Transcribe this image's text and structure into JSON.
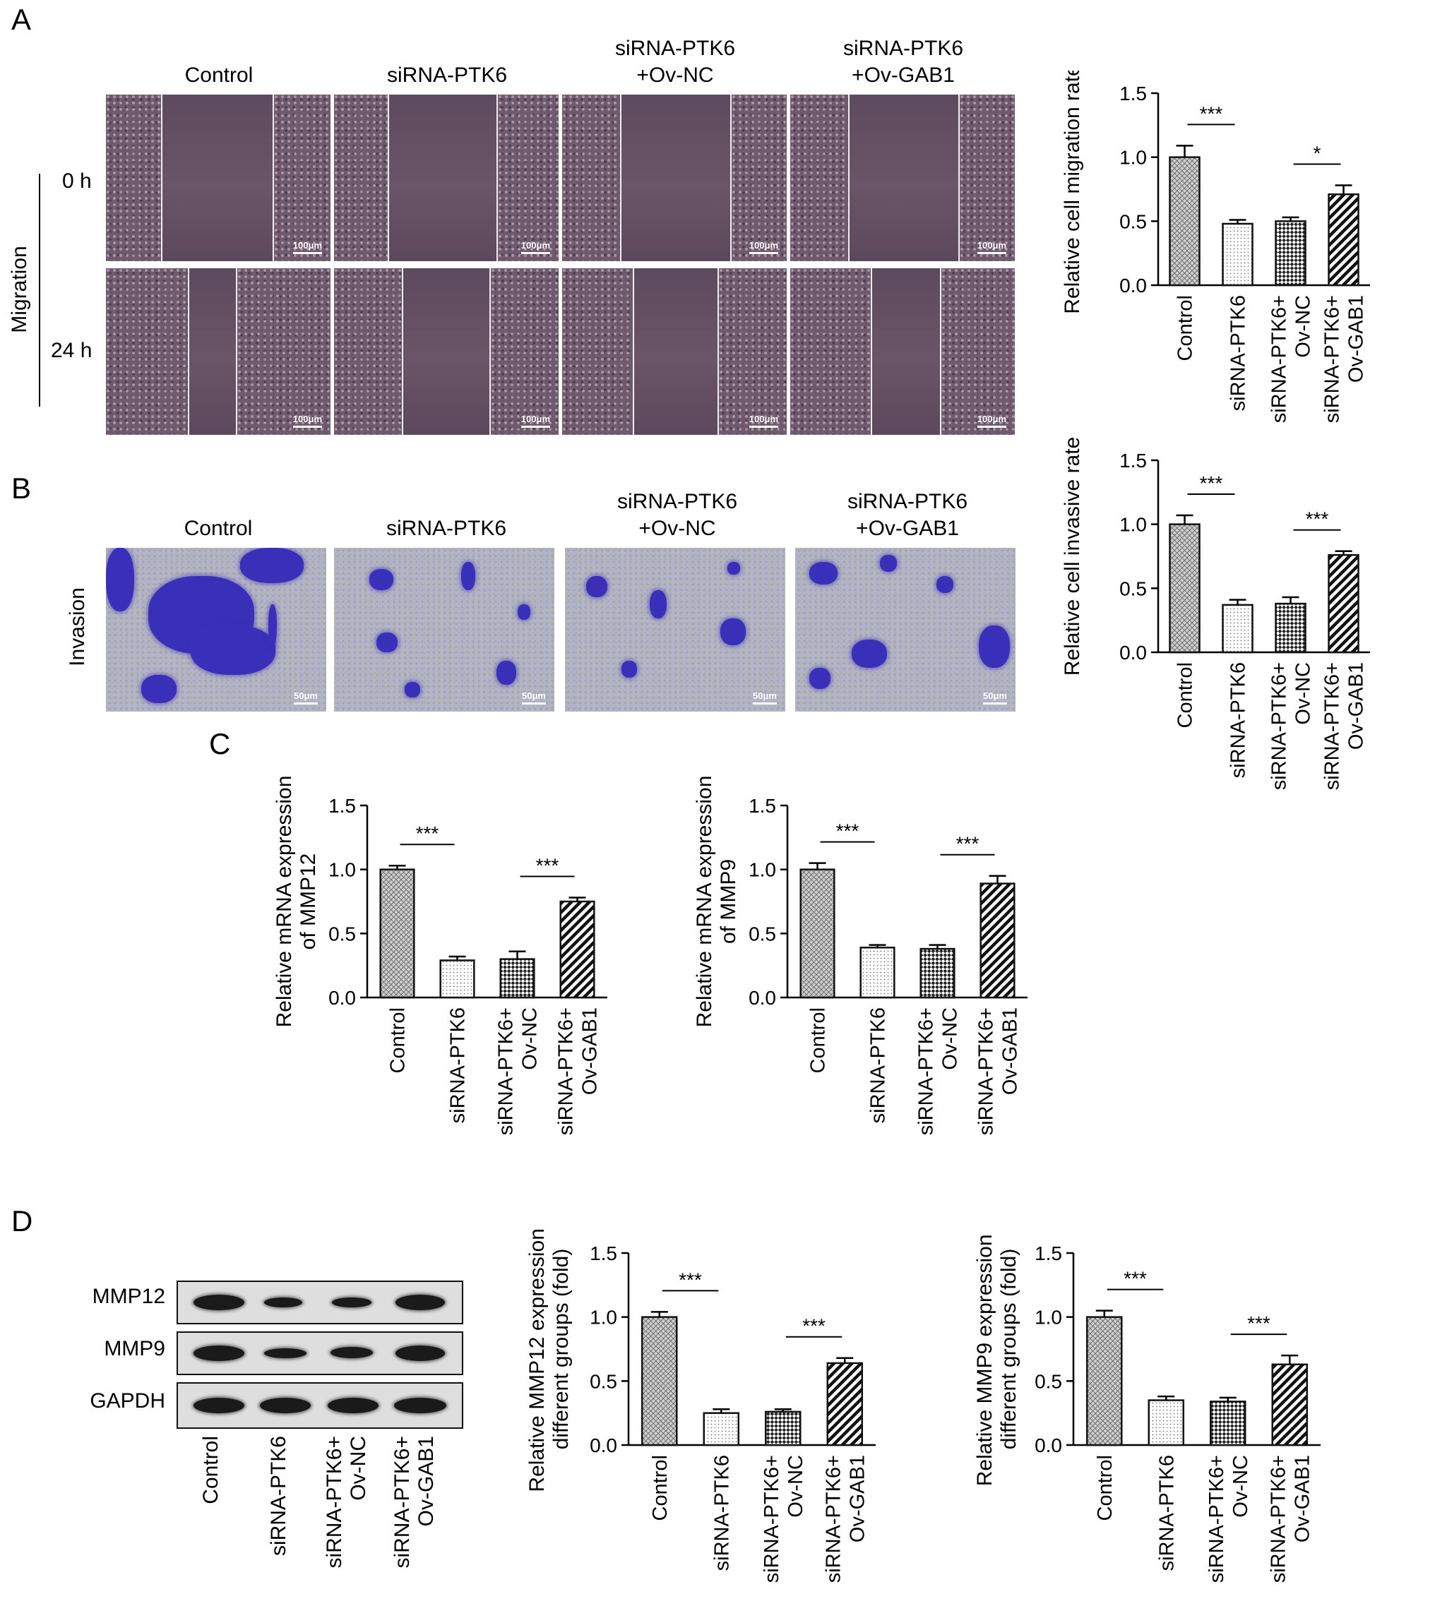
{
  "panels": {
    "a": "A",
    "b": "B",
    "c": "C",
    "d": "D"
  },
  "group_headers": [
    {
      "line1": "Control",
      "line2": ""
    },
    {
      "line1": "siRNA-PTK6",
      "line2": ""
    },
    {
      "line1": "siRNA-PTK6",
      "line2": "+Ov-NC"
    },
    {
      "line1": "siRNA-PTK6",
      "line2": "+Ov-GAB1"
    }
  ],
  "migration": {
    "label": "Migration",
    "row_0h": "0 h",
    "row_24h": "24 h",
    "scale_bar": "100μm"
  },
  "invasion": {
    "label": "Invasion",
    "scale_bar": "50μm"
  },
  "blot": {
    "rows": [
      "MMP12",
      "MMP9",
      "GAPDH"
    ],
    "lanes": [
      "Control",
      "siRNA-PTK6",
      "siRNA-PTK6+\nOv-NC",
      "siRNA-PTK6+\nOv-GAB1"
    ]
  },
  "colors": {
    "axis": "#000000",
    "bar_stroke": "#111111",
    "pattern": "#444444"
  },
  "chart_data": [
    {
      "id": "migration-rate",
      "type": "bar",
      "categories": [
        "Control",
        "siRNA-PTK6",
        "siRNA-PTK6+\nOv-NC",
        "siRNA-PTK6+\nOv-GAB1"
      ],
      "values": [
        1.0,
        0.48,
        0.5,
        0.71
      ],
      "errors": [
        0.09,
        0.03,
        0.03,
        0.07
      ],
      "ylabel": "Relative cell migration rate",
      "ylim": [
        0,
        1.5
      ],
      "yticks": [
        "0.0",
        "0.5",
        "1.0",
        "1.5"
      ],
      "significance": [
        {
          "from": 0,
          "to": 1,
          "label": "***"
        },
        {
          "from": 2,
          "to": 3,
          "label": "*"
        }
      ]
    },
    {
      "id": "invasive-rate",
      "type": "bar",
      "categories": [
        "Control",
        "siRNA-PTK6",
        "siRNA-PTK6+\nOv-NC",
        "siRNA-PTK6+\nOv-GAB1"
      ],
      "values": [
        1.0,
        0.37,
        0.38,
        0.76
      ],
      "errors": [
        0.07,
        0.04,
        0.05,
        0.03
      ],
      "ylabel": "Relative cell invasive rate",
      "ylim": [
        0,
        1.5
      ],
      "yticks": [
        "0.0",
        "0.5",
        "1.0",
        "1.5"
      ],
      "significance": [
        {
          "from": 0,
          "to": 1,
          "label": "***"
        },
        {
          "from": 2,
          "to": 3,
          "label": "***"
        }
      ]
    },
    {
      "id": "mrna-mmp12",
      "type": "bar",
      "categories": [
        "Control",
        "siRNA-PTK6",
        "siRNA-PTK6+\nOv-NC",
        "siRNA-PTK6+\nOv-GAB1"
      ],
      "values": [
        1.0,
        0.29,
        0.3,
        0.75
      ],
      "errors": [
        0.03,
        0.03,
        0.06,
        0.03
      ],
      "ylabel": "Relative mRNA expression\nof MMP12",
      "ylim": [
        0,
        1.5
      ],
      "yticks": [
        "0.0",
        "0.5",
        "1.0",
        "1.5"
      ],
      "significance": [
        {
          "from": 0,
          "to": 1,
          "label": "***"
        },
        {
          "from": 2,
          "to": 3,
          "label": "***"
        }
      ]
    },
    {
      "id": "mrna-mmp9",
      "type": "bar",
      "categories": [
        "Control",
        "siRNA-PTK6",
        "siRNA-PTK6+\nOv-NC",
        "siRNA-PTK6+\nOv-GAB1"
      ],
      "values": [
        1.0,
        0.39,
        0.38,
        0.89
      ],
      "errors": [
        0.05,
        0.02,
        0.03,
        0.06
      ],
      "ylabel": "Relative mRNA expression\nof MMP9",
      "ylim": [
        0,
        1.5
      ],
      "yticks": [
        "0.0",
        "0.5",
        "1.0",
        "1.5"
      ],
      "significance": [
        {
          "from": 0,
          "to": 1,
          "label": "***"
        },
        {
          "from": 2,
          "to": 3,
          "label": "***"
        }
      ]
    },
    {
      "id": "protein-mmp12",
      "type": "bar",
      "categories": [
        "Control",
        "siRNA-PTK6",
        "siRNA-PTK6+\nOv-NC",
        "siRNA-PTK6+\nOv-GAB1"
      ],
      "values": [
        1.0,
        0.25,
        0.26,
        0.64
      ],
      "errors": [
        0.04,
        0.03,
        0.02,
        0.04
      ],
      "ylabel": "Relative MMP12 expression in\ndifferent groups (fold)",
      "ylim": [
        0,
        1.5
      ],
      "yticks": [
        "0.0",
        "0.5",
        "1.0",
        "1.5"
      ],
      "significance": [
        {
          "from": 0,
          "to": 1,
          "label": "***"
        },
        {
          "from": 2,
          "to": 3,
          "label": "***"
        }
      ]
    },
    {
      "id": "protein-mmp9",
      "type": "bar",
      "categories": [
        "Control",
        "siRNA-PTK6",
        "siRNA-PTK6+\nOv-NC",
        "siRNA-PTK6+\nOv-GAB1"
      ],
      "values": [
        1.0,
        0.35,
        0.34,
        0.63
      ],
      "errors": [
        0.05,
        0.03,
        0.03,
        0.07
      ],
      "ylabel": "Relative MMP9 expression in\ndifferent groups (fold)",
      "ylim": [
        0,
        1.5
      ],
      "yticks": [
        "0.0",
        "0.5",
        "1.0",
        "1.5"
      ],
      "significance": [
        {
          "from": 0,
          "to": 1,
          "label": "***"
        },
        {
          "from": 2,
          "to": 3,
          "label": "***"
        }
      ]
    }
  ]
}
